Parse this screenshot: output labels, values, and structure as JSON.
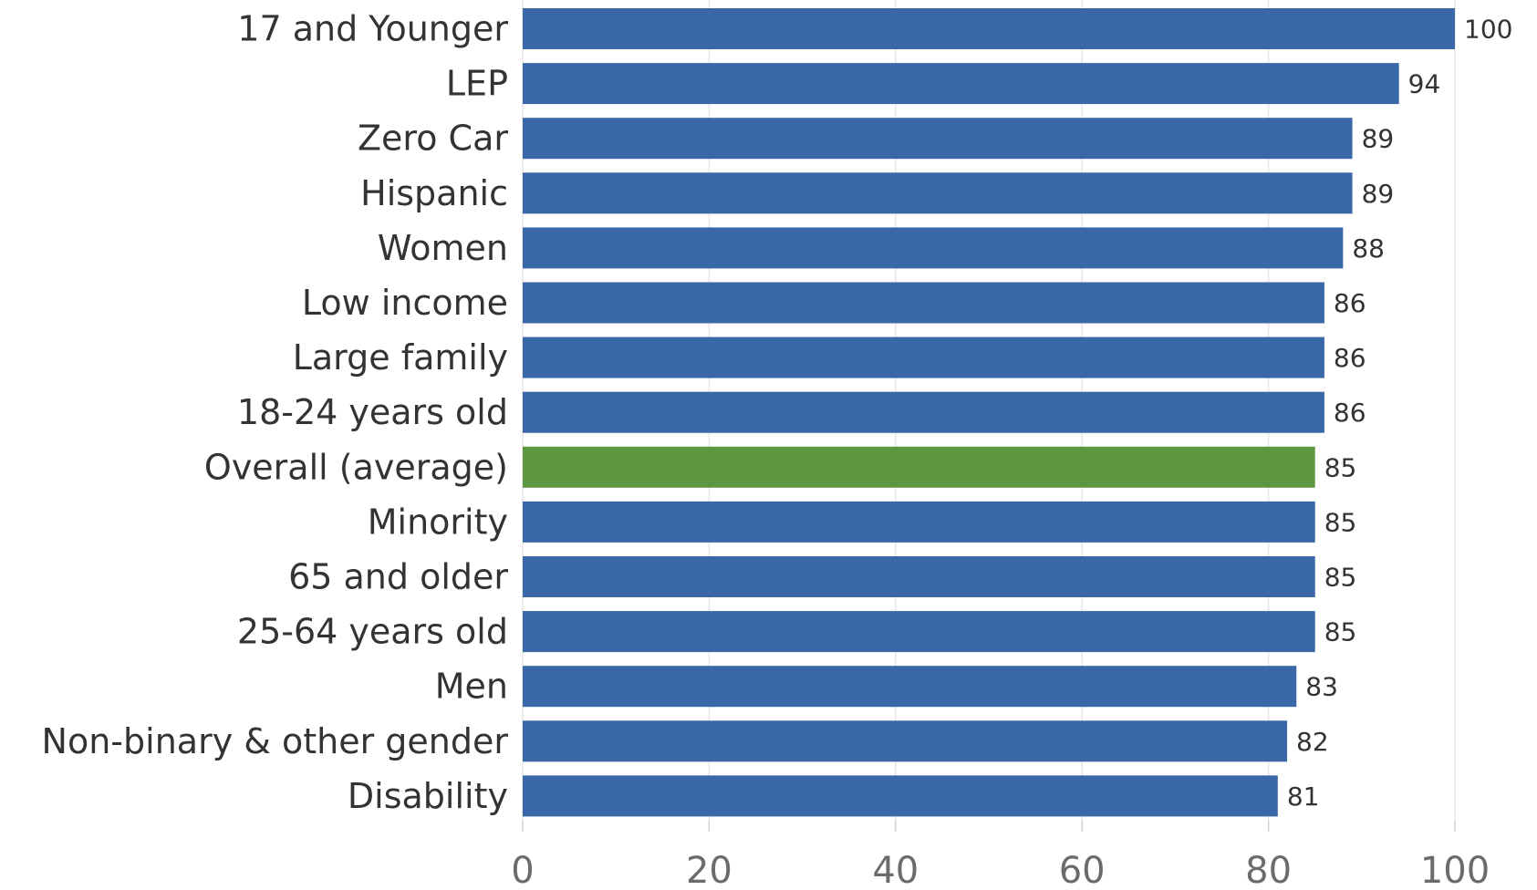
{
  "chart_data": {
    "type": "bar",
    "orientation": "horizontal",
    "categories": [
      "17 and Younger",
      "LEP",
      "Zero Car",
      "Hispanic",
      "Women",
      "Low income",
      "Large family",
      "18-24 years old",
      "Overall (average)",
      "Minority",
      "65 and older",
      "25-64 years old",
      "Men",
      "Non-binary & other gender",
      "Disability"
    ],
    "values": [
      100,
      94,
      89,
      89,
      88,
      86,
      86,
      86,
      85,
      85,
      85,
      85,
      83,
      82,
      81
    ],
    "highlight_category": "Overall (average)",
    "colors": {
      "bar": "#3a67a8",
      "highlight": "#5e9741",
      "grid": "#e6e6e6",
      "axis_tick_text": "#6b6b6b",
      "label_text": "#333333"
    },
    "x_ticks": [
      "0",
      "20",
      "40",
      "60",
      "80",
      "100"
    ],
    "xlim": [
      0,
      100
    ],
    "grid": true,
    "title": "",
    "xlabel": "",
    "ylabel": "",
    "data_labels": [
      "100",
      "94",
      "89",
      "89",
      "88",
      "86",
      "86",
      "86",
      "85",
      "85",
      "85",
      "85",
      "83",
      "82",
      "81"
    ]
  }
}
